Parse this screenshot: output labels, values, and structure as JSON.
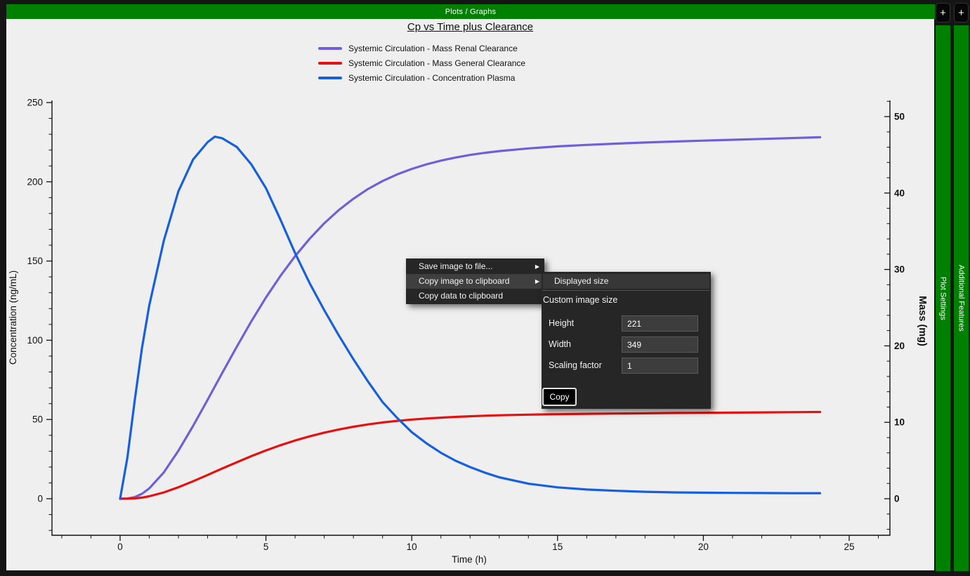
{
  "colors": {
    "accent_green": "#008000",
    "canvas_bg": "#efefef",
    "menu_bg": "#262626",
    "menu_highlight": "#3f3f3f",
    "series_renal": "#6f5fd8",
    "series_general": "#e51010",
    "series_plasma": "#1660e0"
  },
  "header": {
    "title": "Plots / Graphs"
  },
  "side_tabs": [
    {
      "label": "Plot Settings",
      "plus": "+"
    },
    {
      "label": "Additional Features",
      "plus": "+"
    }
  ],
  "chart": {
    "title": "Cp vs Time plus Clearance"
  },
  "legend": {
    "items": [
      {
        "label": "Systemic Circulation - Mass Renal Clearance",
        "color": "#6f5fd8"
      },
      {
        "label": "Systemic Circulation - Mass General Clearance",
        "color": "#e51010"
      },
      {
        "label": "Systemic Circulation - Concentration Plasma",
        "color": "#1660e0"
      }
    ]
  },
  "context_menu": {
    "arrow_icon": "▶",
    "items": [
      {
        "label": "Save image to file...",
        "has_submenu": true,
        "highlighted": false
      },
      {
        "label": "Copy image to clipboard",
        "has_submenu": true,
        "highlighted": true
      },
      {
        "label": "Copy data to clipboard",
        "has_submenu": false,
        "highlighted": false
      }
    ]
  },
  "submenu": {
    "displayed_size_label": "Displayed size",
    "custom_section_label": "Custom image size",
    "fields": [
      {
        "label": "Height",
        "value": "221"
      },
      {
        "label": "Width",
        "value": "349"
      },
      {
        "label": "Scaling factor",
        "value": "1"
      }
    ],
    "copy_button_label": "Copy"
  },
  "chart_data": {
    "type": "line",
    "title": "Cp vs Time plus Clearance",
    "xlabel": "Time (h)",
    "ylabel_left": "Concentration (ng/mL)",
    "ylabel_right": "Mass (mg)",
    "xlim": [
      -2.3,
      26.4
    ],
    "ylim_left": [
      -23,
      251
    ],
    "ylim_right": [
      -4.8,
      52
    ],
    "x_ticks": [
      0,
      5,
      10,
      15,
      20,
      25
    ],
    "y_ticks_left": [
      0,
      50,
      100,
      150,
      200,
      250
    ],
    "y_ticks_right": [
      0,
      10,
      20,
      30,
      40,
      50
    ],
    "grid": false,
    "legend_position": "top-center",
    "x": [
      0,
      0.25,
      0.5,
      0.75,
      1,
      1.5,
      2,
      2.5,
      3,
      3.25,
      3.5,
      4,
      4.5,
      5,
      5.5,
      6,
      6.5,
      7,
      7.5,
      8,
      8.5,
      9,
      9.5,
      10,
      10.5,
      11,
      11.5,
      12,
      12.5,
      13,
      14,
      15,
      16,
      17,
      18,
      19,
      20,
      21,
      22,
      23,
      24
    ],
    "series": [
      {
        "name": "Systemic Circulation - Mass Renal Clearance",
        "axis": "right",
        "color": "#6f5fd8",
        "values": [
          0,
          0.03,
          0.21,
          0.64,
          1.35,
          3.46,
          6.28,
          9.51,
          12.95,
          14.7,
          16.44,
          19.89,
          23.21,
          26.32,
          29.17,
          31.74,
          34.03,
          36.04,
          37.78,
          39.26,
          40.52,
          41.57,
          42.44,
          43.15,
          43.75,
          44.24,
          44.64,
          44.98,
          45.26,
          45.49,
          45.84,
          46.1,
          46.3,
          46.46,
          46.61,
          46.74,
          46.86,
          46.97,
          47.08,
          47.19,
          47.3
        ]
      },
      {
        "name": "Systemic Circulation - Mass General Clearance",
        "axis": "right",
        "color": "#e51010",
        "values": [
          0,
          0.01,
          0.05,
          0.15,
          0.32,
          0.83,
          1.51,
          2.28,
          3.11,
          3.53,
          3.95,
          4.77,
          5.57,
          6.31,
          7.0,
          7.62,
          8.16,
          8.65,
          9.06,
          9.42,
          9.72,
          9.98,
          10.18,
          10.36,
          10.5,
          10.61,
          10.71,
          10.79,
          10.86,
          10.92,
          11.0,
          11.06,
          11.11,
          11.15,
          11.18,
          11.22,
          11.24,
          11.27,
          11.3,
          11.32,
          11.35
        ]
      },
      {
        "name": "Systemic Circulation - Concentration Plasma",
        "axis": "left",
        "color": "#1660e0",
        "values": [
          0,
          26,
          62,
          95,
          122,
          163,
          194,
          214,
          225,
          228.5,
          227.5,
          222,
          211,
          196,
          176,
          155,
          136,
          119,
          103,
          88,
          74,
          61,
          51,
          42,
          35,
          29,
          24,
          20,
          16.5,
          13.5,
          9.5,
          7.2,
          5.8,
          5,
          4.4,
          4,
          3.8,
          3.7,
          3.6,
          3.5,
          3.5
        ]
      }
    ]
  }
}
